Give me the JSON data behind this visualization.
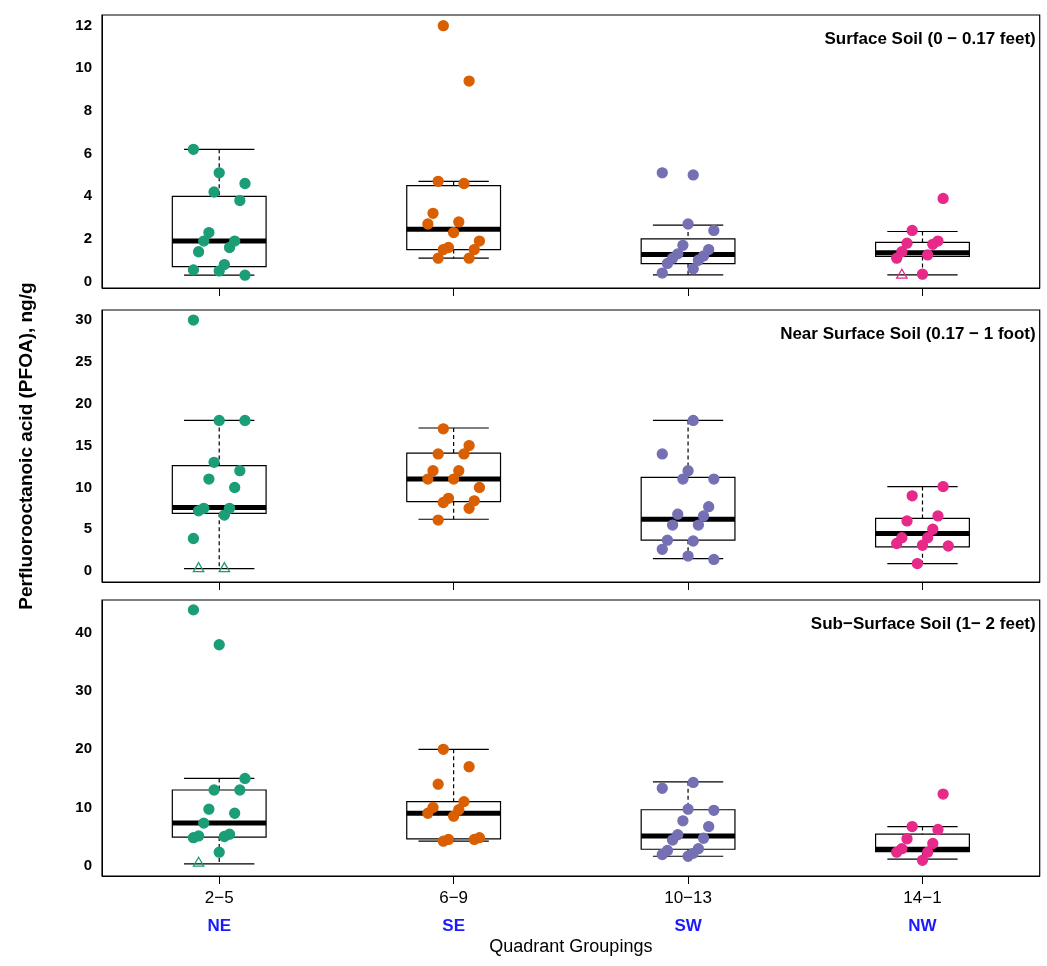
{
  "chart_data": [
    {
      "type": "box",
      "title": "Surface Soil (0 − 0.17 feet)",
      "categories": [
        "2−5",
        "6−9",
        "10−13",
        "14−1"
      ],
      "ylim": [
        -0.3,
        12.5
      ],
      "yticks": [
        0,
        2,
        4,
        6,
        8,
        10,
        12
      ],
      "tick_labels": "y",
      "marker": "circle",
      "legend": false,
      "boxes": [
        {
          "low": 0.3,
          "q1": 0.7,
          "median": 1.9,
          "q3": 4.0,
          "high": 6.2
        },
        {
          "low": 1.1,
          "q1": 1.5,
          "median": 2.45,
          "q3": 4.5,
          "high": 4.7
        },
        {
          "low": 0.32,
          "q1": 0.84,
          "median": 1.27,
          "q3": 2.0,
          "high": 2.65
        },
        {
          "low": 0.32,
          "q1": 1.18,
          "median": 1.35,
          "q3": 1.84,
          "high": 2.35
        }
      ],
      "series": [
        {
          "type": "scatter",
          "color": "#1b9e77",
          "x": [
            "2−5",
            "2−5",
            "2−5",
            "2−5",
            "2−5",
            "2−5",
            "2−5",
            "2−5",
            "2−5",
            "2−5",
            "2−5",
            "2−5",
            "2−5",
            "2−5"
          ],
          "values": [
            6.2,
            5.1,
            4.6,
            4.2,
            3.8,
            2.3,
            1.9,
            1.9,
            1.6,
            1.4,
            0.8,
            0.55,
            0.5,
            0.3
          ]
        },
        {
          "type": "scatter",
          "color": "#d95f02",
          "x": [
            "6−9",
            "6−9",
            "6−9",
            "6−9",
            "6−9",
            "6−9",
            "6−9",
            "6−9",
            "6−9",
            "6−9",
            "6−9",
            "6−9",
            "6−9",
            "6−9"
          ],
          "values": [
            12,
            9.4,
            4.7,
            4.6,
            3.2,
            2.8,
            2.7,
            2.3,
            1.9,
            1.6,
            1.5,
            1.5,
            1.1,
            1.1
          ]
        },
        {
          "type": "scatter",
          "color": "#7570b3",
          "x": [
            "10−13",
            "10−13",
            "10−13",
            "10−13",
            "10−13",
            "10−13",
            "10−13",
            "10−13",
            "10−13",
            "10−13",
            "10−13",
            "10−13",
            "10−13"
          ],
          "values": [
            5.0,
            5.1,
            2.7,
            2.4,
            1.7,
            1.5,
            1.3,
            1.2,
            1.1,
            1.0,
            0.85,
            0.6,
            0.4
          ]
        },
        {
          "type": "scatter",
          "color": "#e7298a",
          "x": [
            "14−1",
            "14−1",
            "14−1",
            "14−1",
            "14−1",
            "14−1",
            "14−1",
            "14−1",
            "14−1"
          ],
          "values": [
            3.9,
            2.4,
            1.9,
            1.8,
            1.75,
            1.4,
            1.25,
            1.1,
            0.35
          ]
        },
        {
          "type": "scatter",
          "marker": "triangle",
          "color": "#e7298a",
          "x": [
            "14−1"
          ],
          "values": [
            0.3
          ]
        }
      ]
    },
    {
      "type": "box",
      "title": "Near Surface Soil (0.17 − 1 foot)",
      "ylabel": "Perfluorooctanoic acid (PFOA), ng/g",
      "categories": [
        "2−5",
        "6−9",
        "10−13",
        "14−1"
      ],
      "ylim": [
        -1.3,
        31.2
      ],
      "yticks": [
        0,
        5,
        10,
        15,
        20,
        25,
        30
      ],
      "tick_labels": "y",
      "marker": "circle",
      "legend": false,
      "boxes": [
        {
          "low": 0.3,
          "q1": 6.9,
          "median": 7.6,
          "q3": 12.6,
          "high": 18
        },
        {
          "low": 6.2,
          "q1": 8.3,
          "median": 11,
          "q3": 14.1,
          "high": 17.1
        },
        {
          "low": 1.5,
          "q1": 3.7,
          "median": 6.2,
          "q3": 11.2,
          "high": 18
        },
        {
          "low": 0.9,
          "q1": 2.9,
          "median": 4.5,
          "q3": 6.3,
          "high": 10.1
        }
      ],
      "series": [
        {
          "type": "scatter",
          "color": "#1b9e77",
          "x": [
            "2−5",
            "2−5",
            "2−5",
            "2−5",
            "2−5",
            "2−5",
            "2−5",
            "2−5",
            "2−5",
            "2−5",
            "2−5",
            "2−5"
          ],
          "values": [
            30,
            18,
            18,
            13,
            12,
            11,
            10,
            7.5,
            7.5,
            7.2,
            6.7,
            3.9
          ]
        },
        {
          "type": "scatter",
          "color": "#d95f02",
          "x": [
            "6−9",
            "6−9",
            "6−9",
            "6−9",
            "6−9",
            "6−9",
            "6−9",
            "6−9",
            "6−9",
            "6−9",
            "6−9",
            "6−9",
            "6−9",
            "6−9"
          ],
          "values": [
            17,
            15,
            14,
            14,
            12,
            12,
            11,
            11,
            10,
            8.7,
            8.4,
            8.2,
            7.5,
            6.1
          ]
        },
        {
          "type": "scatter",
          "color": "#7570b3",
          "x": [
            "10−13",
            "10−13",
            "10−13",
            "10−13",
            "10−13",
            "10−13",
            "10−13",
            "10−13",
            "10−13",
            "10−13",
            "10−13",
            "10−13",
            "10−13",
            "10−13",
            "10−13"
          ],
          "values": [
            18,
            14,
            12,
            11,
            11,
            7.7,
            6.8,
            6.6,
            5.5,
            5.5,
            3.7,
            3.6,
            2.6,
            1.8,
            1.4
          ]
        },
        {
          "type": "scatter",
          "color": "#e7298a",
          "x": [
            "14−1",
            "14−1",
            "14−1",
            "14−1",
            "14−1",
            "14−1",
            "14−1",
            "14−1",
            "14−1",
            "14−1",
            "14−1"
          ],
          "values": [
            10.1,
            9,
            6.6,
            6,
            5,
            4,
            4,
            3.3,
            3.1,
            3,
            0.9
          ]
        },
        {
          "type": "scatter",
          "marker": "triangle",
          "color": "#1b9e77",
          "x": [
            "2−5",
            "2−5"
          ],
          "values": [
            0.3,
            0.3
          ]
        }
      ]
    },
    {
      "type": "box",
      "title": "Sub−Surface Soil (1− 2 feet)",
      "xlabel": "Quadrant Groupings",
      "categories": [
        "2−5",
        "6−9",
        "10−13",
        "14−1"
      ],
      "ylim": [
        -1.8,
        45.7
      ],
      "yticks": [
        0,
        10,
        20,
        30,
        40
      ],
      "marker": "circle",
      "legend": false,
      "annotations": [
        "NE",
        "SE",
        "SW",
        "NW"
      ],
      "boxes": [
        {
          "low": 0.3,
          "q1": 4.9,
          "median": 7.3,
          "q3": 13,
          "high": 15
        },
        {
          "low": 4.2,
          "q1": 4.6,
          "median": 9,
          "q3": 11,
          "high": 20
        },
        {
          "low": 1.6,
          "q1": 2.8,
          "median": 5.1,
          "q3": 9.6,
          "high": 14.4
        },
        {
          "low": 1.1,
          "q1": 2.4,
          "median": 2.8,
          "q3": 5.4,
          "high": 6.7
        }
      ],
      "series": [
        {
          "type": "scatter",
          "color": "#1b9e77",
          "x": [
            "2−5",
            "2−5",
            "2−5",
            "2−5",
            "2−5",
            "2−5",
            "2−5",
            "2−5",
            "2−5",
            "2−5",
            "2−5",
            "2−5",
            "2−5"
          ],
          "values": [
            44,
            38,
            15,
            13,
            13,
            9.7,
            9,
            7.3,
            5.4,
            5.1,
            5,
            4.8,
            2.3
          ]
        },
        {
          "type": "scatter",
          "color": "#d95f02",
          "x": [
            "6−9",
            "6−9",
            "6−9",
            "6−9",
            "6−9",
            "6−9",
            "6−9",
            "6−9",
            "6−9",
            "6−9",
            "6−9",
            "6−9"
          ],
          "values": [
            20,
            17,
            14,
            11,
            10,
            9.6,
            9,
            8.5,
            4.8,
            4.5,
            4.5,
            4.2
          ]
        },
        {
          "type": "scatter",
          "color": "#7570b3",
          "x": [
            "10−13",
            "10−13",
            "10−13",
            "10−13",
            "10−13",
            "10−13",
            "10−13",
            "10−13",
            "10−13",
            "10−13",
            "10−13",
            "10−13",
            "10−13",
            "10−13"
          ],
          "values": [
            14.3,
            13.3,
            9.7,
            9.5,
            7.7,
            6.7,
            5.3,
            4.7,
            4.4,
            2.9,
            2.6,
            2.1,
            1.9,
            1.6
          ]
        },
        {
          "type": "scatter",
          "color": "#e7298a",
          "x": [
            "14−1",
            "14−1",
            "14−1",
            "14−1",
            "14−1",
            "14−1",
            "14−1",
            "14−1",
            "14−1"
          ],
          "values": [
            12.3,
            6.7,
            6.2,
            4.6,
            3.8,
            2.9,
            2.3,
            2.3,
            0.9
          ]
        },
        {
          "type": "scatter",
          "marker": "triangle",
          "color": "#1b9e77",
          "x": [
            "2−5"
          ],
          "values": [
            0.4
          ]
        }
      ]
    }
  ]
}
